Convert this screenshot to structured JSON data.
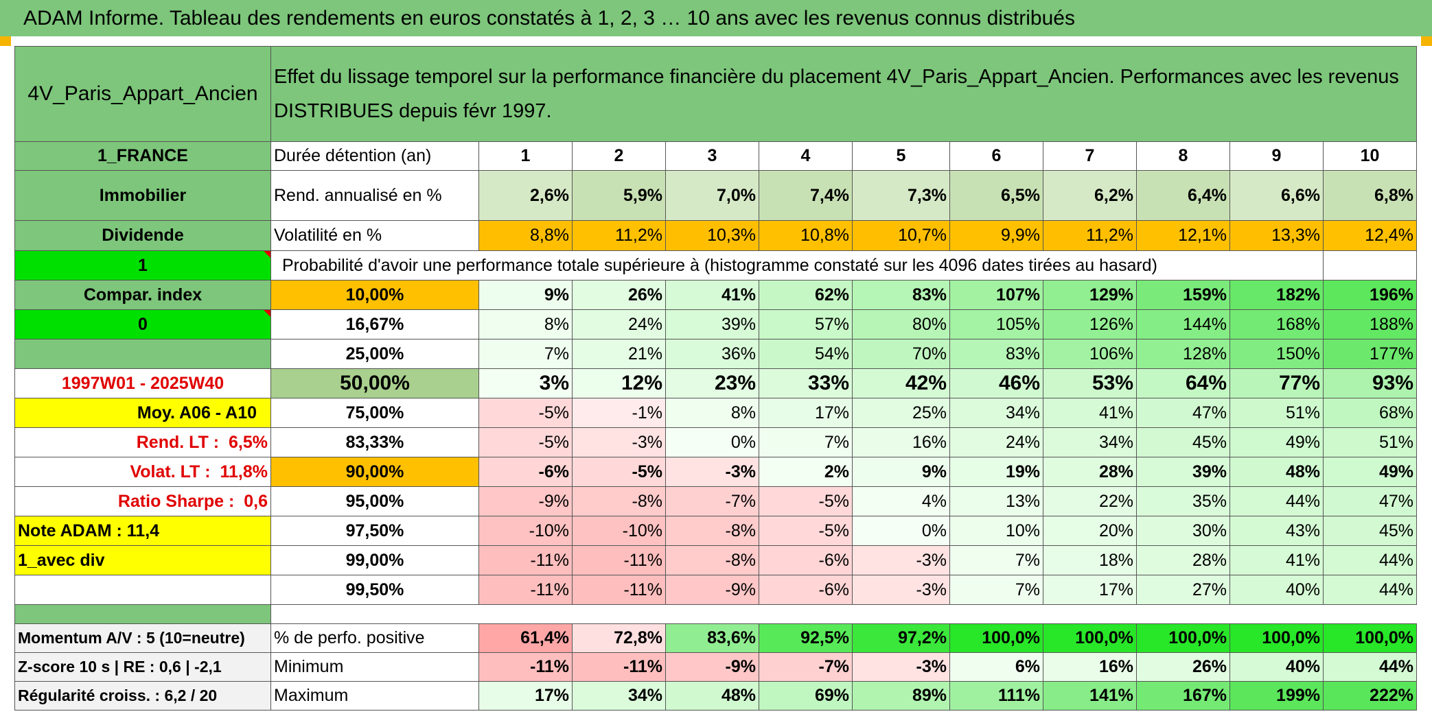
{
  "title": "ADAM Informe. Tableau des rendements en euros constatés à 1, 2, 3 … 10 ans avec les revenus connus distribués",
  "header": {
    "asset_name": "4V_Paris_Appart_Ancien",
    "description": "Effet du lissage temporel sur la performance financière du placement 4V_Paris_Appart_Ancien. Performances avec les revenus DISTRIBUES depuis févr 1997."
  },
  "left": {
    "country": "1_FRANCE",
    "category": "Immobilier",
    "income": "Dividende",
    "flag1": "1",
    "compar_index": "Compar. index",
    "flag0": "0",
    "period": "1997W01 - 2025W40",
    "moy": "Moy. A06 - A10",
    "rend_lt_label": "Rend. LT :",
    "rend_lt_value": "6,5%",
    "volat_lt_label": "Volat. LT :",
    "volat_lt_value": "11,8%",
    "sharpe_label": "Ratio Sharpe :",
    "sharpe_value": "0,6",
    "note": "Note ADAM : 11,4",
    "avec_div": "1_avec div",
    "momentum": "Momentum A/V : 5 (10=neutre)",
    "zscore": "Z-score 10 s | RE : 0,6 | -2,1",
    "regularite": "Régularité croiss. : 6,2 / 20"
  },
  "rows": {
    "duree_label": "Durée détention (an)",
    "years": [
      "1",
      "2",
      "3",
      "4",
      "5",
      "6",
      "7",
      "8",
      "9",
      "10"
    ],
    "rend_label": "Rend. annualisé en %",
    "rend": [
      "2,6%",
      "5,9%",
      "7,0%",
      "7,4%",
      "7,3%",
      "6,5%",
      "6,2%",
      "6,4%",
      "6,6%",
      "6,8%"
    ],
    "vol_label": "Volatilité en %",
    "vol": [
      "8,8%",
      "11,2%",
      "10,3%",
      "10,8%",
      "10,7%",
      "9,9%",
      "11,2%",
      "12,1%",
      "13,3%",
      "12,4%"
    ],
    "proba_label": "Probabilité d'avoir une performance totale supérieure à (histogramme constaté sur les 4096 dates tirées au hasard)"
  },
  "percentiles": [
    {
      "p": "10,00%",
      "v": [
        "9%",
        "26%",
        "41%",
        "62%",
        "83%",
        "107%",
        "129%",
        "159%",
        "182%",
        "196%"
      ]
    },
    {
      "p": "16,67%",
      "v": [
        "8%",
        "24%",
        "39%",
        "57%",
        "80%",
        "105%",
        "126%",
        "144%",
        "168%",
        "188%"
      ]
    },
    {
      "p": "25,00%",
      "v": [
        "7%",
        "21%",
        "36%",
        "54%",
        "70%",
        "83%",
        "106%",
        "128%",
        "150%",
        "177%"
      ]
    },
    {
      "p": "50,00%",
      "v": [
        "3%",
        "12%",
        "23%",
        "33%",
        "42%",
        "46%",
        "53%",
        "64%",
        "77%",
        "93%"
      ]
    },
    {
      "p": "75,00%",
      "v": [
        "-5%",
        "-1%",
        "8%",
        "17%",
        "25%",
        "34%",
        "41%",
        "47%",
        "51%",
        "68%"
      ]
    },
    {
      "p": "83,33%",
      "v": [
        "-5%",
        "-3%",
        "0%",
        "7%",
        "16%",
        "24%",
        "34%",
        "45%",
        "49%",
        "51%"
      ]
    },
    {
      "p": "90,00%",
      "v": [
        "-6%",
        "-5%",
        "-3%",
        "2%",
        "9%",
        "19%",
        "28%",
        "39%",
        "48%",
        "49%"
      ]
    },
    {
      "p": "95,00%",
      "v": [
        "-9%",
        "-8%",
        "-7%",
        "-5%",
        "4%",
        "13%",
        "22%",
        "35%",
        "44%",
        "47%"
      ]
    },
    {
      "p": "97,50%",
      "v": [
        "-10%",
        "-10%",
        "-8%",
        "-5%",
        "0%",
        "10%",
        "20%",
        "30%",
        "43%",
        "45%"
      ]
    },
    {
      "p": "99,00%",
      "v": [
        "-11%",
        "-11%",
        "-8%",
        "-6%",
        "-3%",
        "7%",
        "18%",
        "28%",
        "41%",
        "44%"
      ]
    },
    {
      "p": "99,50%",
      "v": [
        "-11%",
        "-11%",
        "-9%",
        "-6%",
        "-3%",
        "7%",
        "17%",
        "27%",
        "40%",
        "44%"
      ]
    }
  ],
  "bottom": {
    "pos_label": "% de perfo. positive",
    "pos": [
      "61,4%",
      "72,8%",
      "83,6%",
      "92,5%",
      "97,2%",
      "100,0%",
      "100,0%",
      "100,0%",
      "100,0%",
      "100,0%"
    ],
    "min_label": "Minimum",
    "min": [
      "-11%",
      "-11%",
      "-9%",
      "-7%",
      "-3%",
      "6%",
      "16%",
      "26%",
      "40%",
      "44%"
    ],
    "max_label": "Maximum",
    "max": [
      "17%",
      "34%",
      "48%",
      "69%",
      "89%",
      "111%",
      "141%",
      "167%",
      "199%",
      "222%"
    ]
  },
  "colors": {
    "header_green": "#7dc67b",
    "orange": "#ffc000",
    "yellow": "#ffff00",
    "bright_green": "#00e000",
    "label_red": "#e00000"
  }
}
